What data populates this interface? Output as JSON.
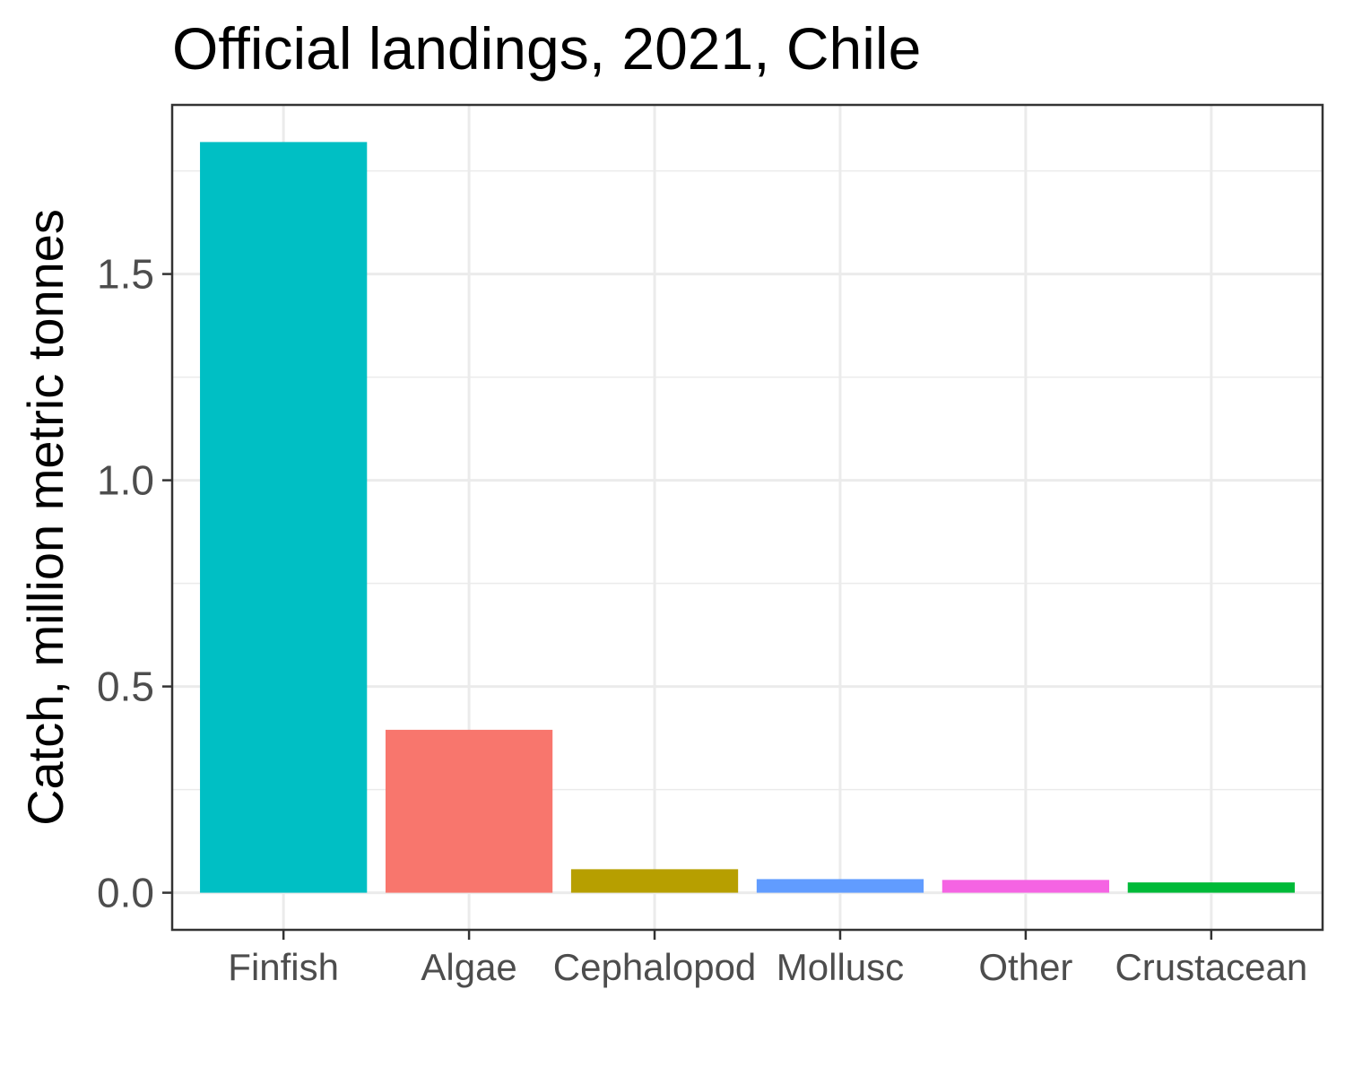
{
  "chart_data": {
    "type": "bar",
    "title": "Official landings, 2021, Chile",
    "xlabel": "",
    "ylabel": "Catch, million metric tonnes",
    "categories": [
      "Finfish",
      "Algae",
      "Cephalopod",
      "Mollusc",
      "Other",
      "Crustacean"
    ],
    "values": [
      1.82,
      0.395,
      0.057,
      0.033,
      0.031,
      0.025
    ],
    "colors": [
      "#00BFC4",
      "#F8766D",
      "#B79F00",
      "#619CFF",
      "#F564E3",
      "#00BA38"
    ],
    "ylim": [
      -0.09,
      1.91
    ],
    "yticks": [
      0.0,
      0.5,
      1.0,
      1.5
    ],
    "ytick_labels": [
      "0.0",
      "0.5",
      "1.0",
      "1.5"
    ],
    "grid": true,
    "legend": "none"
  }
}
